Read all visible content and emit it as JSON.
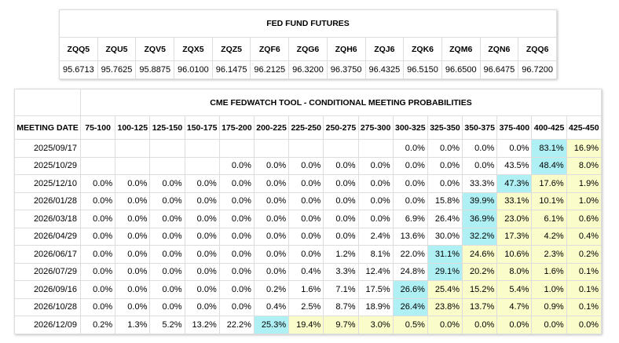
{
  "futures": {
    "title": "FED FUND FUTURES",
    "headers": [
      "ZQQ5",
      "ZQU5",
      "ZQV5",
      "ZQX5",
      "ZQZ5",
      "ZQF6",
      "ZQG6",
      "ZQH6",
      "ZQJ6",
      "ZQK6",
      "ZQM6",
      "ZQN6",
      "ZQQ6"
    ],
    "values": [
      "95.6713",
      "95.7625",
      "95.8875",
      "96.0100",
      "96.1475",
      "96.2125",
      "96.3200",
      "96.3750",
      "96.4325",
      "96.5150",
      "96.6500",
      "96.6475",
      "96.7200"
    ]
  },
  "fedwatch": {
    "title": "CME FEDWATCH TOOL - CONDITIONAL MEETING PROBABILITIES",
    "first_header": "MEETING DATE",
    "headers": [
      "75-100",
      "100-125",
      "125-150",
      "150-175",
      "175-200",
      "200-225",
      "225-250",
      "250-275",
      "275-300",
      "300-325",
      "325-350",
      "350-375",
      "375-400",
      "400-425",
      "425-450"
    ],
    "rows": [
      {
        "date": "2025/09/17",
        "cells": [
          null,
          null,
          null,
          null,
          null,
          null,
          null,
          null,
          null,
          "0.0%",
          "0.0%",
          "0.0%",
          "0.0%",
          "83.1%",
          "16.9%"
        ]
      },
      {
        "date": "2025/10/29",
        "cells": [
          null,
          null,
          null,
          null,
          "0.0%",
          "0.0%",
          "0.0%",
          "0.0%",
          "0.0%",
          "0.0%",
          "0.0%",
          "0.0%",
          "43.5%",
          "48.4%",
          "8.0%"
        ]
      },
      {
        "date": "2025/12/10",
        "cells": [
          "0.0%",
          "0.0%",
          "0.0%",
          "0.0%",
          "0.0%",
          "0.0%",
          "0.0%",
          "0.0%",
          "0.0%",
          "0.0%",
          "0.0%",
          "33.3%",
          "47.3%",
          "17.6%",
          "1.9%"
        ]
      },
      {
        "date": "2026/01/28",
        "cells": [
          "0.0%",
          "0.0%",
          "0.0%",
          "0.0%",
          "0.0%",
          "0.0%",
          "0.0%",
          "0.0%",
          "0.0%",
          "0.0%",
          "15.8%",
          "39.9%",
          "33.1%",
          "10.1%",
          "1.0%"
        ]
      },
      {
        "date": "2026/03/18",
        "cells": [
          "0.0%",
          "0.0%",
          "0.0%",
          "0.0%",
          "0.0%",
          "0.0%",
          "0.0%",
          "0.0%",
          "0.0%",
          "6.9%",
          "26.4%",
          "36.9%",
          "23.0%",
          "6.1%",
          "0.6%"
        ]
      },
      {
        "date": "2026/04/29",
        "cells": [
          "0.0%",
          "0.0%",
          "0.0%",
          "0.0%",
          "0.0%",
          "0.0%",
          "0.0%",
          "0.0%",
          "2.4%",
          "13.6%",
          "30.0%",
          "32.2%",
          "17.3%",
          "4.2%",
          "0.4%"
        ]
      },
      {
        "date": "2026/06/17",
        "cells": [
          "0.0%",
          "0.0%",
          "0.0%",
          "0.0%",
          "0.0%",
          "0.0%",
          "0.0%",
          "1.2%",
          "8.1%",
          "22.0%",
          "31.1%",
          "24.6%",
          "10.6%",
          "2.3%",
          "0.2%"
        ]
      },
      {
        "date": "2026/07/29",
        "cells": [
          "0.0%",
          "0.0%",
          "0.0%",
          "0.0%",
          "0.0%",
          "0.0%",
          "0.4%",
          "3.3%",
          "12.4%",
          "24.8%",
          "29.1%",
          "20.2%",
          "8.0%",
          "1.6%",
          "0.1%"
        ]
      },
      {
        "date": "2026/09/16",
        "cells": [
          "0.0%",
          "0.0%",
          "0.0%",
          "0.0%",
          "0.0%",
          "0.2%",
          "1.6%",
          "7.1%",
          "17.5%",
          "26.6%",
          "25.4%",
          "15.2%",
          "5.4%",
          "1.0%",
          "0.1%"
        ]
      },
      {
        "date": "2026/10/28",
        "cells": [
          "0.0%",
          "0.0%",
          "0.0%",
          "0.0%",
          "0.0%",
          "0.4%",
          "2.5%",
          "8.7%",
          "18.9%",
          "26.4%",
          "23.8%",
          "13.7%",
          "4.7%",
          "0.9%",
          "0.1%"
        ]
      },
      {
        "date": "2026/12/09",
        "cells": [
          "0.2%",
          "1.3%",
          "5.2%",
          "13.2%",
          "22.2%",
          "25.3%",
          "19.4%",
          "9.7%",
          "3.0%",
          "0.5%",
          "0.0%",
          "0.0%",
          "0.0%",
          "0.0%",
          "0.0%"
        ]
      }
    ]
  }
}
